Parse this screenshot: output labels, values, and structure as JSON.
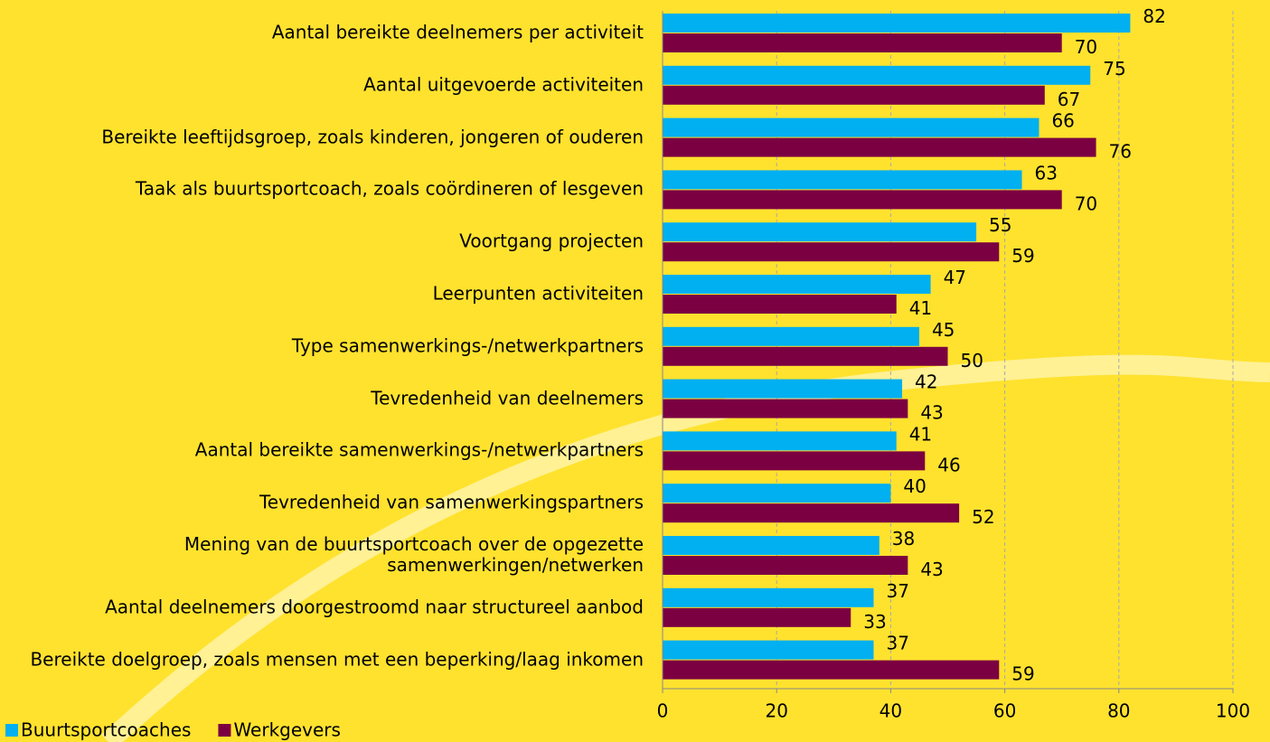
{
  "chart_data": {
    "type": "bar",
    "orientation": "horizontal",
    "categories": [
      "Aantal bereikte deelnemers per activiteit",
      "Aantal uitgevoerde activiteiten",
      "Bereikte leeftijdsgroep, zoals kinderen, jongeren of ouderen",
      "Taak als buurtsportcoach, zoals coördineren of lesgeven",
      "Voortgang projecten",
      "Leerpunten activiteiten",
      "Type samenwerkings-/netwerkpartners",
      "Tevredenheid van deelnemers",
      "Aantal bereikte samenwerkings-/netwerkpartners",
      "Tevredenheid van samenwerkingspartners",
      "Mening van de buurtsportcoach over de opgezette samenwerkingen/netwerken",
      "Aantal deelnemers doorgestroomd naar structureel aanbod",
      "Bereikte doelgroep, zoals mensen met een beperking/laag inkomen"
    ],
    "series": [
      {
        "name": "Buurtsportcoaches",
        "color": "#00b0f0",
        "values": [
          82,
          75,
          66,
          63,
          55,
          47,
          45,
          42,
          41,
          40,
          38,
          37,
          37
        ]
      },
      {
        "name": "Werkgevers",
        "color": "#7b0041",
        "values": [
          70,
          67,
          76,
          70,
          59,
          41,
          50,
          43,
          46,
          52,
          43,
          33,
          59
        ]
      }
    ],
    "xlim": [
      0,
      100
    ],
    "xticks": [
      0,
      20,
      40,
      60,
      80,
      100
    ],
    "grid": true,
    "legend": "bottom-left"
  }
}
